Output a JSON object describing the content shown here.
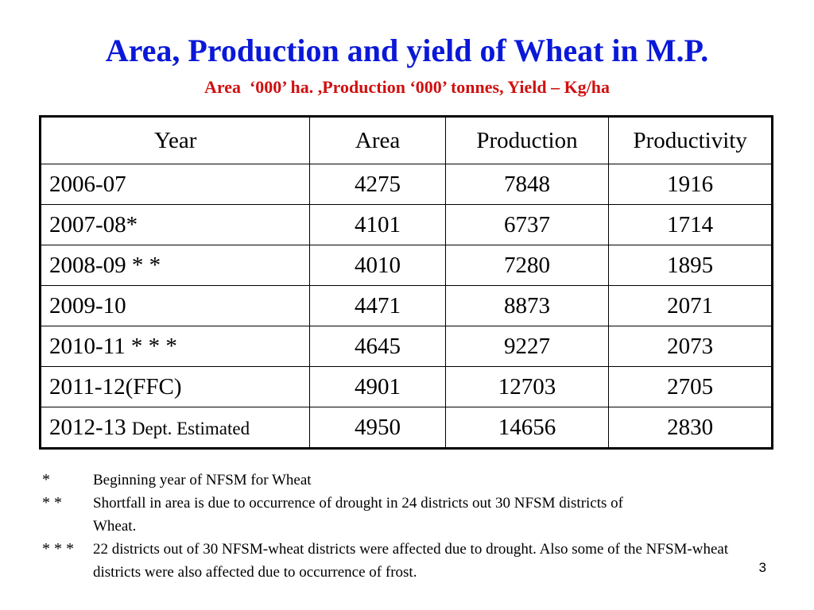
{
  "title": "Area, Production and yield of Wheat in M.P.",
  "subtitle": "Area  ‘000’ ha. ,Production ‘000’ tonnes, Yield – Kg/ha",
  "table": {
    "headers": [
      "Year",
      "Area",
      "Production",
      "Productivity"
    ],
    "rows": [
      {
        "year": "2006-07",
        "note": "",
        "area": "4275",
        "production": "7848",
        "productivity": "1916"
      },
      {
        "year": "2007-08*",
        "note": "",
        "area": "4101",
        "production": "6737",
        "productivity": "1714"
      },
      {
        "year": "2008-09 * *",
        "note": "",
        "area": "4010",
        "production": "7280",
        "productivity": "1895"
      },
      {
        "year": "2009-10",
        "note": "",
        "area": "4471",
        "production": "8873",
        "productivity": "2071"
      },
      {
        "year": "2010-11 * * *",
        "note": "",
        "area": "4645",
        "production": "9227",
        "productivity": "2073"
      },
      {
        "year": "2011-12(FFC)",
        "note": "",
        "area": "4901",
        "production": "12703",
        "productivity": "2705"
      },
      {
        "year": "2012-13 ",
        "note": "Dept. Estimated",
        "area": "4950",
        "production": "14656",
        "productivity": "2830"
      }
    ]
  },
  "footnotes": [
    {
      "mark": "*",
      "text": "Beginning year of NFSM for Wheat"
    },
    {
      "mark": "* *",
      "text": "Shortfall in area is due to occurrence of drought in 24 districts out 30 NFSM districts of Wheat."
    },
    {
      "mark": "* * *",
      "text": "22 districts out of 30 NFSM-wheat districts were affected due to drought. Also some of the NFSM-wheat districts were also affected due to  occurrence of frost."
    }
  ],
  "page_number": "3"
}
